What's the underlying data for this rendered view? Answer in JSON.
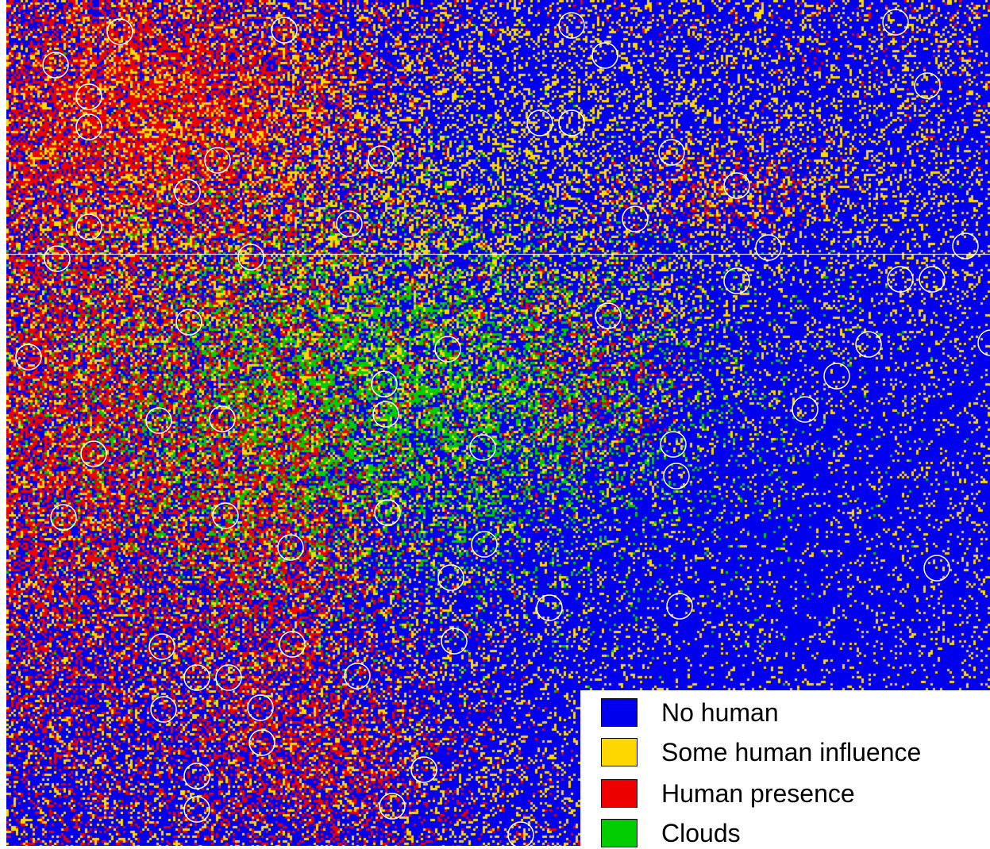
{
  "map": {
    "colors": {
      "no_human": "#0000ee",
      "some_human_influence": "#ffd700",
      "human_presence": "#ee0000",
      "clouds": "#00cc00",
      "marker_circles": "#ffffff",
      "scan_line": "#ffffff"
    }
  },
  "legend": {
    "items": [
      {
        "label": "No human",
        "color": "#0000ee"
      },
      {
        "label": "Some human influence",
        "color": "#ffd700"
      },
      {
        "label": "Human presence",
        "color": "#ee0000"
      },
      {
        "label": "Clouds",
        "color": "#00cc00"
      }
    ]
  }
}
